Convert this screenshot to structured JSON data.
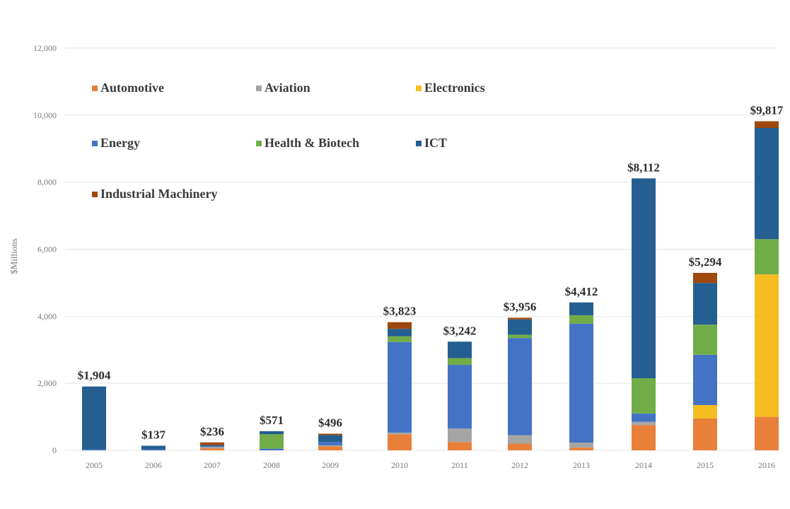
{
  "chart_data": {
    "type": "bar",
    "stacked": true,
    "ylabel": "$Millions",
    "ylim": [
      0,
      12000
    ],
    "yticks": [
      "0",
      "2,000",
      "4,000",
      "6,000",
      "8,000",
      "10,000",
      "12,000"
    ],
    "categories": [
      "2005",
      "2006",
      "2007",
      "2008",
      "2009",
      "2010",
      "2011",
      "2012",
      "2013",
      "2014",
      "2015",
      "2016"
    ],
    "totals": [
      "$1,904",
      "$137",
      "$236",
      "$571",
      "$496",
      "$3,823",
      "$3,242",
      "$3,956",
      "$4,412",
      "$8,112",
      "$5,294",
      "$9,817"
    ],
    "total_values": [
      1904,
      137,
      236,
      571,
      496,
      3823,
      3242,
      3956,
      4412,
      8112,
      5294,
      9817
    ],
    "grid": true,
    "legend_placement": "top-left",
    "series": [
      {
        "name": "Automotive",
        "color": "#e8803a",
        "values": [
          0,
          0,
          60,
          0,
          120,
          480,
          250,
          200,
          80,
          750,
          950,
          1000
        ]
      },
      {
        "name": "Aviation",
        "color": "#a5a5a5",
        "values": [
          0,
          0,
          40,
          0,
          30,
          50,
          400,
          250,
          150,
          100,
          0,
          0
        ]
      },
      {
        "name": "Electronics",
        "color": "#f5bd1f",
        "values": [
          0,
          0,
          0,
          0,
          0,
          0,
          0,
          0,
          0,
          0,
          400,
          4250
        ]
      },
      {
        "name": "Energy",
        "color": "#4472c4",
        "values": [
          30,
          30,
          20,
          50,
          100,
          2700,
          1900,
          2900,
          3550,
          250,
          1500,
          0
        ]
      },
      {
        "name": "Health & Biotech",
        "color": "#70ad47",
        "values": [
          0,
          0,
          0,
          430,
          0,
          170,
          200,
          100,
          250,
          1050,
          900,
          1050
        ]
      },
      {
        "name": "ICT",
        "color": "#255e91",
        "values": [
          1874,
          107,
          36,
          91,
          206,
          223,
          492,
          456,
          382,
          5962,
          1244,
          3317
        ]
      },
      {
        "name": "Industrial Machinery",
        "color": "#9e480e",
        "values": [
          0,
          0,
          80,
          0,
          40,
          200,
          0,
          50,
          0,
          0,
          300,
          200
        ]
      }
    ]
  }
}
